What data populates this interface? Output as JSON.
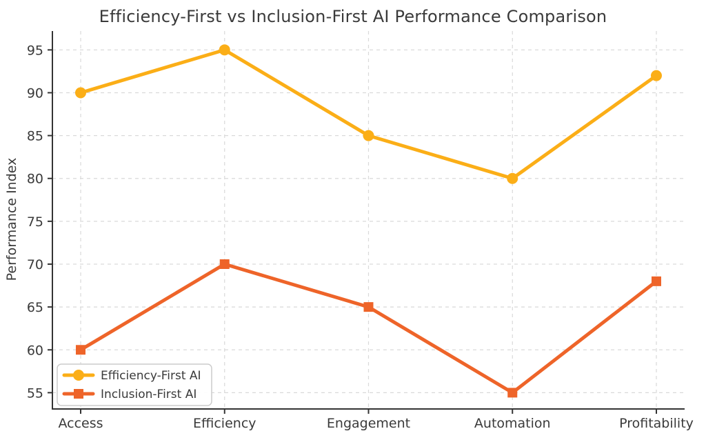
{
  "title": "Efficiency-First vs Inclusion-First AI Performance Comparison",
  "chart_data": {
    "type": "line",
    "title": "Efficiency-First vs Inclusion-First AI Performance Comparison",
    "xlabel": "",
    "ylabel": "Performance Index",
    "categories": [
      "Access",
      "Efficiency",
      "Engagement",
      "Automation",
      "Profitability"
    ],
    "series": [
      {
        "name": "Efficiency-First AI",
        "values": [
          90,
          95,
          85,
          80,
          92
        ],
        "color": "#FBAE17",
        "marker": "circle"
      },
      {
        "name": "Inclusion-First AI",
        "values": [
          60,
          70,
          65,
          55,
          68
        ],
        "color": "#EE6429",
        "marker": "square"
      }
    ],
    "yticks": [
      55,
      60,
      65,
      70,
      75,
      80,
      85,
      90,
      95
    ],
    "ylim": [
      53.1,
      97.2
    ],
    "grid": true,
    "grid_style": "dashed",
    "grid_color": "#d9d9d9",
    "axis_color": "#333333",
    "text_color": "#3a3a3a",
    "legend_position": "lower-left"
  }
}
